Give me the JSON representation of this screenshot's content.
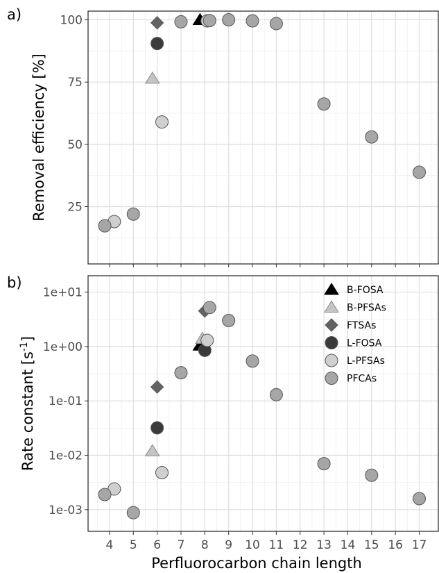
{
  "chart_data": [
    {
      "panel_label": "a)",
      "type": "scatter",
      "ylabel": "Removal efficiency [%]",
      "xlim": [
        3.1,
        17.8
      ],
      "ylim": [
        2,
        103.5
      ],
      "y_scale": "linear",
      "yticks": [
        25,
        50,
        75,
        100
      ],
      "ytick_labels": [
        "25",
        "50",
        "75",
        "100"
      ],
      "grid": true,
      "series": [
        {
          "name": "B-FOSA",
          "marker": "triangle",
          "color": "#000000",
          "points": [
            {
              "x": 7.8,
              "y": 100
            }
          ]
        },
        {
          "name": "B-PFSAs",
          "marker": "triangle",
          "color": "#c4c4c4",
          "points": [
            {
              "x": 5.8,
              "y": 76.5
            }
          ]
        },
        {
          "name": "FTSAs",
          "marker": "diamond",
          "color": "#636363",
          "points": [
            {
              "x": 6,
              "y": 98.8
            }
          ]
        },
        {
          "name": "L-FOSA",
          "marker": "circle",
          "color": "#3a3a3a",
          "points": [
            {
              "x": 6,
              "y": 90.5
            }
          ]
        },
        {
          "name": "L-PFSAs",
          "marker": "circle",
          "color": "#cfcfcf",
          "points": [
            {
              "x": 4.2,
              "y": 19
            },
            {
              "x": 6.2,
              "y": 59
            },
            {
              "x": 8.1,
              "y": 99.6
            }
          ]
        },
        {
          "name": "PFCAs",
          "marker": "circle",
          "color": "#a6a6a6",
          "points": [
            {
              "x": 3.8,
              "y": 17.3
            },
            {
              "x": 5,
              "y": 22
            },
            {
              "x": 7,
              "y": 99.2
            },
            {
              "x": 8.2,
              "y": 99.7
            },
            {
              "x": 9,
              "y": 100
            },
            {
              "x": 10,
              "y": 99.6
            },
            {
              "x": 11,
              "y": 98.5
            },
            {
              "x": 13,
              "y": 66.2
            },
            {
              "x": 15,
              "y": 53
            },
            {
              "x": 17,
              "y": 38.8
            }
          ]
        }
      ]
    },
    {
      "panel_label": "b)",
      "type": "scatter",
      "ylabel_main": "Rate constant [s",
      "ylabel_sup": "-1",
      "ylabel_close": "]",
      "xlabel": "Perfluorocarbon chain length",
      "xlim": [
        3.1,
        17.8
      ],
      "ylim": [
        0.0004,
        20
      ],
      "y_scale": "log",
      "yticks": [
        0.001,
        0.01,
        0.1,
        1,
        10
      ],
      "ytick_labels": [
        "1e-03",
        "1e-02",
        "1e-01",
        "1e+00",
        "1e+01"
      ],
      "xticks": [
        4,
        5,
        6,
        7,
        8,
        9,
        10,
        11,
        12,
        13,
        14,
        15,
        16,
        17
      ],
      "xtick_labels": [
        "4",
        "5",
        "6",
        "7",
        "8",
        "9",
        "10",
        "11",
        "12",
        "13",
        "14",
        "15",
        "16",
        "17"
      ],
      "grid": true,
      "legend_position": "top-right",
      "series": [
        {
          "name": "B-FOSA",
          "marker": "triangle",
          "color": "#000000",
          "points": [
            {
              "x": 7.8,
              "y": 1.05
            }
          ]
        },
        {
          "name": "B-PFSAs",
          "marker": "triangle",
          "color": "#c4c4c4",
          "points": [
            {
              "x": 5.8,
              "y": 0.012
            },
            {
              "x": 7.9,
              "y": 1.4
            }
          ]
        },
        {
          "name": "FTSAs",
          "marker": "diamond",
          "color": "#636363",
          "points": [
            {
              "x": 6,
              "y": 0.18
            },
            {
              "x": 8,
              "y": 4.5
            }
          ]
        },
        {
          "name": "L-FOSA",
          "marker": "circle",
          "color": "#3a3a3a",
          "points": [
            {
              "x": 6,
              "y": 0.032
            },
            {
              "x": 8,
              "y": 0.85
            }
          ]
        },
        {
          "name": "L-PFSAs",
          "marker": "circle",
          "color": "#cfcfcf",
          "points": [
            {
              "x": 4.2,
              "y": 0.0024
            },
            {
              "x": 6.2,
              "y": 0.0048
            },
            {
              "x": 8.1,
              "y": 1.3
            }
          ]
        },
        {
          "name": "PFCAs",
          "marker": "circle",
          "color": "#a6a6a6",
          "points": [
            {
              "x": 3.8,
              "y": 0.0019
            },
            {
              "x": 5,
              "y": 0.00088
            },
            {
              "x": 7,
              "y": 0.33
            },
            {
              "x": 8.2,
              "y": 5.2
            },
            {
              "x": 9,
              "y": 3.0
            },
            {
              "x": 10,
              "y": 0.54
            },
            {
              "x": 11,
              "y": 0.13
            },
            {
              "x": 13,
              "y": 0.007
            },
            {
              "x": 15,
              "y": 0.0043
            },
            {
              "x": 17,
              "y": 0.0016
            }
          ]
        }
      ]
    }
  ]
}
